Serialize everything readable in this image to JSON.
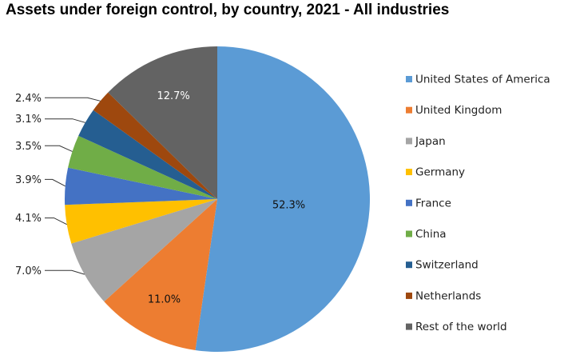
{
  "chart_data": {
    "type": "pie",
    "title": "Assets under foreign control, by country, 2021 - All industries",
    "slices": [
      {
        "label": "United States of America",
        "value": 52.3,
        "display": "52.3%",
        "color": "#5b9bd5"
      },
      {
        "label": "United Kingdom",
        "value": 11.0,
        "display": "11.0%",
        "color": "#ed7d31"
      },
      {
        "label": "Japan",
        "value": 7.0,
        "display": "7.0%",
        "color": "#a5a5a5"
      },
      {
        "label": "Germany",
        "value": 4.1,
        "display": "4.1%",
        "color": "#ffc000"
      },
      {
        "label": "France",
        "value": 3.9,
        "display": "3.9%",
        "color": "#4472c4"
      },
      {
        "label": "China",
        "value": 3.5,
        "display": "3.5%",
        "color": "#70ad47"
      },
      {
        "label": "Switzerland",
        "value": 3.1,
        "display": "3.1%",
        "color": "#255e91"
      },
      {
        "label": "Netherlands",
        "value": 2.4,
        "display": "2.4%",
        "color": "#9e480e"
      },
      {
        "label": "Rest of the world",
        "value": 12.7,
        "display": "12.7%",
        "color": "#636363"
      }
    ],
    "legend_position": "right"
  }
}
